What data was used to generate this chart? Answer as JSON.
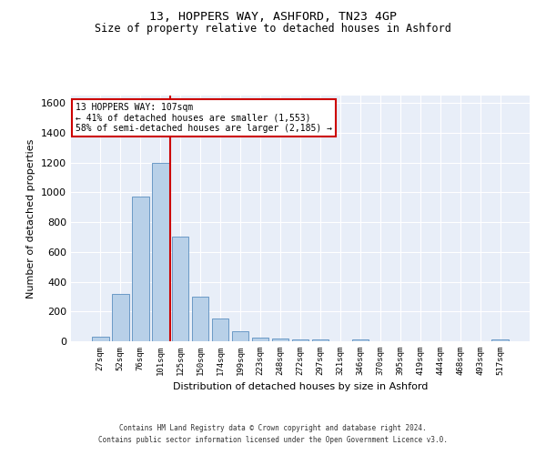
{
  "title1": "13, HOPPERS WAY, ASHFORD, TN23 4GP",
  "title2": "Size of property relative to detached houses in Ashford",
  "xlabel": "Distribution of detached houses by size in Ashford",
  "ylabel": "Number of detached properties",
  "categories": [
    "27sqm",
    "52sqm",
    "76sqm",
    "101sqm",
    "125sqm",
    "150sqm",
    "174sqm",
    "199sqm",
    "223sqm",
    "248sqm",
    "272sqm",
    "297sqm",
    "321sqm",
    "346sqm",
    "370sqm",
    "395sqm",
    "419sqm",
    "444sqm",
    "468sqm",
    "493sqm",
    "517sqm"
  ],
  "values": [
    30,
    320,
    970,
    1200,
    700,
    300,
    150,
    70,
    25,
    20,
    15,
    15,
    0,
    15,
    0,
    0,
    0,
    0,
    0,
    0,
    15
  ],
  "bar_color": "#b8d0e8",
  "bar_edge_color": "#5a8fc0",
  "vline_x": 3.5,
  "vline_color": "#cc0000",
  "annotation_text": "13 HOPPERS WAY: 107sqm\n← 41% of detached houses are smaller (1,553)\n58% of semi-detached houses are larger (2,185) →",
  "annotation_box_color": "#cc0000",
  "ylim": [
    0,
    1650
  ],
  "yticks": [
    0,
    200,
    400,
    600,
    800,
    1000,
    1200,
    1400,
    1600
  ],
  "background_color": "#e8eef8",
  "grid_color": "#ffffff",
  "footer1": "Contains HM Land Registry data © Crown copyright and database right 2024.",
  "footer2": "Contains public sector information licensed under the Open Government Licence v3.0."
}
